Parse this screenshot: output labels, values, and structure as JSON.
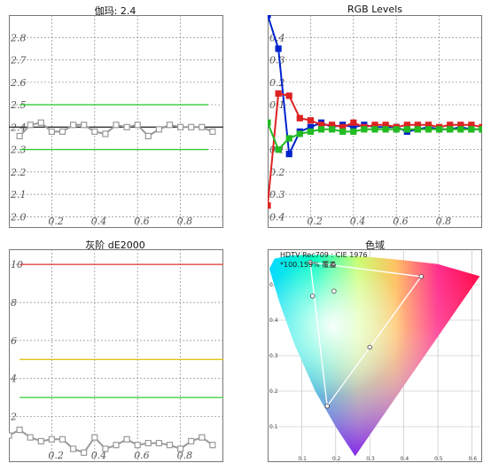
{
  "charts": [
    {
      "type": "line",
      "title": "伽玛: 2.4",
      "xlim": [
        0,
        1
      ],
      "ylim": [
        1.95,
        2.9
      ],
      "x_ticks": [
        {
          "v": 0.2,
          "label": "0.2"
        },
        {
          "v": 0.4,
          "label": "0.4"
        },
        {
          "v": 0.6,
          "label": "0.6"
        },
        {
          "v": 0.8,
          "label": "0.8"
        }
      ],
      "y_ticks": [
        {
          "v": 2.0,
          "label": "2.0"
        },
        {
          "v": 2.1,
          "label": "2.1"
        },
        {
          "v": 2.2,
          "label": "2.2"
        },
        {
          "v": 2.3,
          "label": "2.3"
        },
        {
          "v": 2.4,
          "label": "2.4"
        },
        {
          "v": 2.5,
          "label": "2.5"
        },
        {
          "v": 2.6,
          "label": "2.6"
        },
        {
          "v": 2.7,
          "label": "2.7"
        },
        {
          "v": 2.8,
          "label": "2.8"
        }
      ],
      "reference_lines": [
        {
          "value": 2.5,
          "x": [
            0.05,
            0.93
          ],
          "color": "#33cc33"
        },
        {
          "value": 2.3,
          "x": [
            0.05,
            0.93
          ],
          "color": "#33cc33"
        },
        {
          "value": 2.4,
          "x": [
            0,
            1
          ],
          "color": "#333333"
        }
      ],
      "series": [
        {
          "color": "#999999",
          "marker": "square",
          "x": [
            0.05,
            0.1,
            0.15,
            0.2,
            0.25,
            0.3,
            0.35,
            0.4,
            0.45,
            0.5,
            0.55,
            0.6,
            0.65,
            0.7,
            0.75,
            0.8,
            0.85,
            0.9,
            0.95
          ],
          "y": [
            2.36,
            2.41,
            2.42,
            2.38,
            2.38,
            2.41,
            2.41,
            2.38,
            2.37,
            2.41,
            2.4,
            2.41,
            2.36,
            2.39,
            2.41,
            2.4,
            2.4,
            2.4,
            2.38
          ]
        }
      ]
    },
    {
      "type": "line",
      "title": "RGB Levels",
      "xlim": [
        0,
        1
      ],
      "ylim": [
        -0.45,
        0.5
      ],
      "x_ticks": [
        {
          "v": 0.2,
          "label": "0.2"
        },
        {
          "v": 0.4,
          "label": "0.4"
        },
        {
          "v": 0.6,
          "label": "0.6"
        },
        {
          "v": 0.8,
          "label": "0.8"
        }
      ],
      "y_ticks": [
        {
          "v": 0.4,
          "label": "0.4"
        },
        {
          "v": 0.3,
          "label": "0.3"
        },
        {
          "v": 0.2,
          "label": "0.2"
        },
        {
          "v": 0.1,
          "label": "0.1"
        },
        {
          "v": -0.1,
          "label": "0.1"
        },
        {
          "v": -0.2,
          "label": "0.2"
        },
        {
          "v": -0.3,
          "label": "0.3"
        },
        {
          "v": -0.4,
          "label": "0.4"
        }
      ],
      "series": [
        {
          "color": "#0022cc",
          "marker": "square",
          "x": [
            0,
            0.05,
            0.1,
            0.15,
            0.2,
            0.25,
            0.3,
            0.35,
            0.4,
            0.45,
            0.5,
            0.55,
            0.6,
            0.65,
            0.7,
            0.75,
            0.8,
            0.85,
            0.9,
            0.95,
            1
          ],
          "y": [
            0.5,
            0.35,
            -0.12,
            -0.02,
            0.0,
            0.02,
            0.0,
            0.01,
            0.0,
            0.01,
            0.0,
            0.0,
            0.0,
            -0.02,
            -0.01,
            0.0,
            -0.01,
            -0.01,
            0.0,
            -0.01,
            -0.01
          ]
        },
        {
          "color": "#dd2222",
          "marker": "square",
          "x": [
            0,
            0.05,
            0.1,
            0.15,
            0.2,
            0.25,
            0.3,
            0.35,
            0.4,
            0.45,
            0.5,
            0.55,
            0.6,
            0.65,
            0.7,
            0.75,
            0.8,
            0.85,
            0.9,
            0.95,
            1
          ],
          "y": [
            -0.35,
            0.15,
            0.14,
            0.04,
            0.03,
            0.01,
            0.01,
            0.0,
            0.02,
            0.0,
            0.01,
            0.01,
            0.0,
            0.01,
            0.01,
            0.01,
            0.0,
            0.01,
            0.01,
            0.01,
            0.0
          ]
        },
        {
          "color": "#22bb22",
          "marker": "square",
          "x": [
            0,
            0.05,
            0.1,
            0.15,
            0.2,
            0.25,
            0.3,
            0.35,
            0.4,
            0.45,
            0.5,
            0.55,
            0.6,
            0.65,
            0.7,
            0.75,
            0.8,
            0.85,
            0.9,
            0.95,
            1
          ],
          "y": [
            0.02,
            -0.1,
            -0.05,
            -0.03,
            -0.02,
            -0.01,
            -0.01,
            -0.02,
            -0.02,
            -0.01,
            -0.01,
            -0.01,
            -0.01,
            -0.01,
            -0.01,
            -0.01,
            -0.01,
            -0.01,
            -0.01,
            -0.01,
            -0.01
          ]
        }
      ]
    },
    {
      "type": "line",
      "title": "灰阶 dE2000",
      "xlim": [
        0,
        1
      ],
      "ylim": [
        -0.4,
        10.8
      ],
      "x_ticks": [
        {
          "v": 0.2,
          "label": "0.2"
        },
        {
          "v": 0.4,
          "label": "0.4"
        },
        {
          "v": 0.6,
          "label": "0.6"
        },
        {
          "v": 0.8,
          "label": "0.8"
        }
      ],
      "y_ticks": [
        {
          "v": 2,
          "label": "2"
        },
        {
          "v": 4,
          "label": "4"
        },
        {
          "v": 6,
          "label": "6"
        },
        {
          "v": 8,
          "label": "8"
        },
        {
          "v": 10,
          "label": "10"
        }
      ],
      "reference_lines": [
        {
          "value": 10,
          "x": [
            0.05,
            1
          ],
          "color": "#dd3333"
        },
        {
          "value": 5,
          "x": [
            0.05,
            1
          ],
          "color": "#ddbb00"
        },
        {
          "value": 3,
          "x": [
            0.05,
            1
          ],
          "color": "#33cc33"
        }
      ],
      "series": [
        {
          "color": "#999999",
          "marker": "square",
          "x": [
            0,
            0.05,
            0.1,
            0.15,
            0.2,
            0.25,
            0.3,
            0.35,
            0.4,
            0.45,
            0.5,
            0.55,
            0.6,
            0.65,
            0.7,
            0.75,
            0.8,
            0.85,
            0.9,
            0.95
          ],
          "y": [
            1.0,
            1.3,
            0.9,
            0.7,
            0.8,
            0.8,
            0.3,
            0.1,
            0.9,
            0.3,
            0.5,
            0.8,
            0.5,
            0.6,
            0.6,
            0.5,
            0.3,
            0.7,
            0.9,
            0.5
          ]
        }
      ]
    },
    {
      "type": "scatter",
      "title": "色域",
      "header_line1": "HDTV Rec709 : CIE 1976",
      "header_line2": "*100.159% 覆盖",
      "xlim": [
        0,
        0.63
      ],
      "ylim": [
        0,
        0.6
      ],
      "x_ticks": [
        {
          "v": 0.1,
          "label": "0.1"
        },
        {
          "v": 0.2,
          "label": "0.2"
        },
        {
          "v": 0.3,
          "label": "0.3"
        },
        {
          "v": 0.4,
          "label": "0.4"
        },
        {
          "v": 0.5,
          "label": "0.5"
        },
        {
          "v": 0.6,
          "label": "0.6"
        }
      ],
      "y_ticks": [
        {
          "v": 0.1,
          "label": "0.1"
        },
        {
          "v": 0.2,
          "label": "0.2"
        },
        {
          "v": 0.3,
          "label": "0.3"
        },
        {
          "v": 0.4,
          "label": "0.4"
        },
        {
          "v": 0.5,
          "label": "0.5"
        }
      ],
      "locus_uv": [
        [
          0.257,
          0.017
        ],
        [
          0.2,
          0.1
        ],
        [
          0.14,
          0.2
        ],
        [
          0.08,
          0.33
        ],
        [
          0.035,
          0.45
        ],
        [
          0.005,
          0.545
        ],
        [
          0.02,
          0.573
        ],
        [
          0.06,
          0.582
        ],
        [
          0.12,
          0.584
        ],
        [
          0.2,
          0.583
        ],
        [
          0.29,
          0.579
        ],
        [
          0.4,
          0.569
        ],
        [
          0.5,
          0.558
        ],
        [
          0.623,
          0.524
        ]
      ],
      "target_triangle": [
        [
          0.451,
          0.523
        ],
        [
          0.125,
          0.563
        ],
        [
          0.175,
          0.158
        ]
      ],
      "measured_triangle": [
        [
          0.451,
          0.523
        ],
        [
          0.125,
          0.563
        ],
        [
          0.175,
          0.158
        ]
      ],
      "measured_points": [
        [
          0.451,
          0.523
        ],
        [
          0.125,
          0.563
        ],
        [
          0.175,
          0.158
        ],
        [
          0.3,
          0.324
        ],
        [
          0.193,
          0.556
        ],
        [
          0.132,
          0.468
        ],
        [
          0.195,
          0.482
        ]
      ]
    }
  ]
}
